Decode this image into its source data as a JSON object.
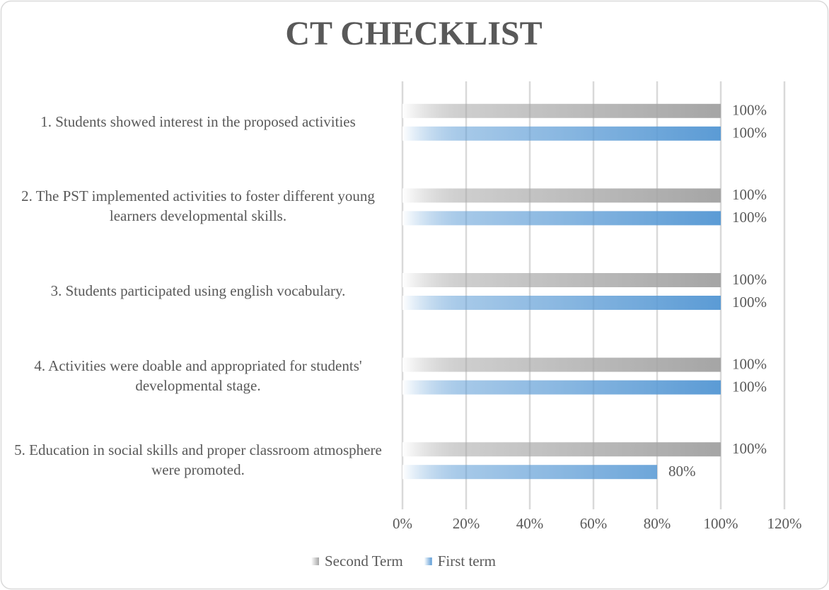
{
  "chart_data": {
    "type": "bar",
    "orientation": "horizontal",
    "title": "CT CHECKLIST",
    "categories": [
      "1. Students showed interest in the proposed activities",
      "2. The PST implemented activities to foster different young learners developmental skills.",
      "3. Students participated using english vocabulary.",
      "4. Activities were doable and appropriated for students' developmental stage.",
      "5. Education in social skills and proper classroom atmosphere were promoted."
    ],
    "series": [
      {
        "name": "Second Term",
        "color": "#a5a5a5",
        "values": [
          100,
          100,
          100,
          100,
          100
        ],
        "value_labels": [
          "100%",
          "100%",
          "100%",
          "100%",
          "100%"
        ]
      },
      {
        "name": "First term",
        "color": "#5b9bd5",
        "values": [
          100,
          100,
          100,
          100,
          80
        ],
        "value_labels": [
          "100%",
          "100%",
          "100%",
          "100%",
          "80%"
        ]
      }
    ],
    "xlim": [
      0,
      120
    ],
    "xticks": [
      {
        "value": 0,
        "label": "0%"
      },
      {
        "value": 20,
        "label": "20%"
      },
      {
        "value": 40,
        "label": "40%"
      },
      {
        "value": 60,
        "label": "60%"
      },
      {
        "value": 80,
        "label": "80%"
      },
      {
        "value": 100,
        "label": "100%"
      },
      {
        "value": 120,
        "label": "120%"
      }
    ],
    "grid": true,
    "legend": "bottom"
  }
}
